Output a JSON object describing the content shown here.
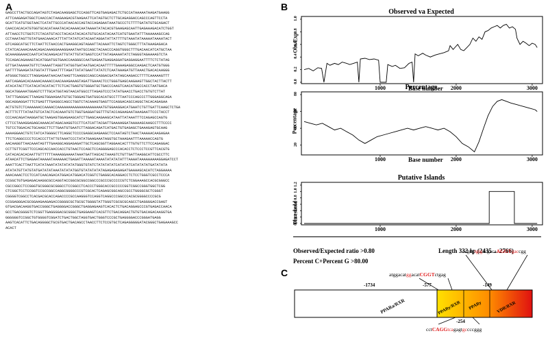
{
  "panels": {
    "a": "A",
    "b": "B",
    "c": "C"
  },
  "sequence_lines": [
    "GAGCCTTACTGCCAGATAGTCTAGACAAGGAGCTCCAGGTTCAGTGAGAGACTCTGCCATAAAAATAAGATGAAGG",
    "ATTCAAGAGATGGCTCAACCACTAAGAAGACGTAAGAATTCATAGTGCTCTTGCAGAGGACCAGCCCAGTTCCTA",
    "GCATTCATGTGGTAACTCATATTGCCCATAACACCAGTACCAGAGAATAAATGCCCTCTTTTGATATGTGCAGACT",
    "CAACCACACATGTGGTGCACATAAATACACAAAACAATAAAATATACACGTGAAGAGCAATTGAGAAAGACATCTGGT",
    "ATTAACCTCTGGTCTCTACATGTACCTACACATACACATGTGCACATACAATCATGTGAATATTTAAAAAAGCCAG",
    "CCTAAATAGTTGTATGAACAAACATTTATTATATCATACAATAGGATATTATTTTGTAAATATAAAAATAAAATACT",
    "GTCAGGCATGCTTCTAATTCTAACCACTGAAGGCAGTAGAATTACAAATTCTAGTCTGGGCTTTATAAAGAGACA",
    "CTATCACAAACAAACAGACAAAGGAAAGGAAATAATGCCAGCTACAACCCAGGTGGGCTTTGACAACATCATGCTAA",
    "GCAAAGGAAACCAATCATACAAGACATTGTATTGTATGAGTCCATTATAGAAAATATCTAGGGTAGAAAAGTCTA",
    "TCCAGACAGAAAGTACATGGATGGTGAACCAAGGGCCAATGAGAATGAGGAGGATGAGGAGGAATTTTCTCTATAG",
    "GTTGATAAAAATGTTCTAAAATTAGGTTATGGTGATAATGACACAATTTTTGAAAGAGGCCAAGACTCAATGTGGG",
    "GATTTTGAAGATATGGTATTTGAATTTTAGATTATATGAATTATATCTCAATAAAGATGTTAAACTGACACAAGGG",
    "ATGGGCTGGCCTTAGGAGAATAACAATAAGTTCAAGGCCAGCCAGGACGATATAGCAAGACCTTTTCAAAAAGTTT",
    "AATCAGAGACACAAAACAAAACCAACAAAGAAAGTAGATTGAAACTCCTGGGTGAGCAAGAAGTTGGCTACTTACTT",
    "ATACATACTTCATACATACATACTTCTCACTGAGTGTGGGATGCTGACCCAAGTCAACATGGCCACCTAATGACA",
    "GGCATGGAAATGGAGTCTTTGCATGGTAGTAACATGGCCTTAGAGTCCCTATATGAACCTGACCTGTGTCTTAT",
    "TATTTGAGGACTTAAGAGTGGAAGAATGTGCTGGGAGTGATGGCACATGCCTTTAATCCCAGCCCTTGGGAGGCAGA",
    "GGCAGGAGGATTTCTGAGTTTGAGGCCAGCCTGGTCTACAAAGTGAGTTCCAGGACAGCCAGGCTACACAGAGAA",
    "ACTGTGTCTCAAAAAACCAAAACCAAAAAAAAAAAAAAAAAAAAATGTGGAAGGACATGAATCTGTTGATTCAAGCTCTGA",
    "ACTTTCTTTATAATGTCATACTCACAAATGTCTGGTGAGGATGGTTTGTACCAGAAGAATAAAGAATTCCCTACCT",
    "CCCAACAGATAAGGATGCTAAGAGTGGAGAAGCATCTTGAGCAAGAAGCATAATTATAAATTTCCAGAGCCAGTG",
    "CTTCCTAAAGGAGAGCAAAACATAGACAAGGTCCTTCATCATTACGATTGAAAAGGATAAAAAGCAAGCCTTTCCCC",
    "TGTCCTGGACACTGCAAGCTTCTTGAATGTGAATCTTAGGACAGATCATGACTGTGAGAGCTGAAAGAGTGCAAG",
    "AAAAGGAACTGTCTATCATGGGGCTTCAGGCTCCCCGAGGCAAGAAGCTCCAATAGTCTAACTAAAAACAAGAGAA",
    "TTCTCAGGCCCCTCCACCCTTATTGTAAATCCCTATATGAAGAAATAGGTGCTAAAGAATTTAAAAACCAGTG",
    "AACAAGGTTAACAAATAGTTTGAAGGCAGGAGAGATTGCTCAGCGGTTAGGAACACTTTGTGTTCTTCCAGAGGAC",
    "CCTTGTTCGGTTCCCAGCACCAACCACCTGTAACTCCAGCTCCAGGGGAGCCCACACCTCTCCCTCCGTTCACGTG",
    "CATACACACACAATTGTTTTTTAAAAGGAAAATAAATGATTAGCACTAAAGTCTGTTGATTAAGGCATTCGCCTTC",
    "ATAACATTCTGAGAATAAAAATAAAAAACTGAGATTAAAAATAAAATATATATATTTAAAATAAAAAAAAAGGAGATCCT",
    "AAATTCACTTAATTCATATAAATATATATATATGGGTGTATCTATATATATCATATATCATATATATGATATATA",
    "ATATATGTTATGTATGATATATAAATATATATGGTGTATATATATAGAGAGAGAGATGAAAAGCACATCTAGGAAAA",
    "AAACAAACTCCTCCATCAACAGACATGGACATGGACATCGGTCTGAGGCACAGGACCTCTCCTGGGTCGCCTCCCA",
    "CCGGCTGTGAGAGACAAGGCGCCAGGTACCGGCGCGGCCGGCCCGCCCGCCCCCGTCTCGGAAAGCCACGCGGGCC",
    "CGCCGGCCTCCGGGTGCGGGCGCGGGCCTCCGGCCTCACCCTGGGCACCGCCCCCGGTCGGCCGGGTGGCTCGG",
    "CTCGGCTCCTCCGGTCCGCCGGCCAGGCGGGGCCCGTCGCACTCAGAGCGGCAGCCGCCTGGGGCGCTCGGGT",
    "CGGGGTCGGCCTCACGACGCACCAGACCCCGCCAAGGGTCCAGGTCAGGCCCGGCCCACGCGGGGCCCCGCG",
    "CCGGAGGGACGCGGAAGAAGAGACCGGGGCGCTGCGCTGGGGTATTGGGTCGCGCGCAGCCTGAGGGGACCGAGT",
    "GTGACGACAAGGTGACCGGGCTGAGGGGACCGGGCTGAGGAGAAGTCACACTCTGACAGGAGCCCGTGAGACCAACA",
    "GCCTGACGGGGTCTCGGTTGAGGGGACGCGGGCTGAGGAAGTCACGTTCTGACAGGACTGTGTGACAGACAAGGTGA",
    "GGGGGGTCCGGCTGTGGGGTCGGATCTGACTGGCTAGGTGACTGGGTCCCGCTGAGGGGACCCGGGATGAGG",
    "AAGTCACATTCTGACAGGGGCTGCGTGACTGACAGCCTAACCTTCTCCGTGCTCAGAGGGGGATACGGGCTGAGAAAGCC",
    "ACACT"
  ],
  "chart_top": {
    "title": "Observed va Expected",
    "ylabel": "Obs/Exp",
    "xlabel": "Base number",
    "yticks": [
      "0.0",
      "0.2",
      "0.4",
      "0.6",
      "0.8",
      "1.0"
    ],
    "xticks": [
      "1000",
      "2000",
      "3000"
    ]
  },
  "chart_mid": {
    "title": "Percentage",
    "ylabel": "Percentage",
    "xlabel": "Base number",
    "yticks": [
      "20",
      "40",
      "60",
      "80"
    ],
    "xticks": [
      "1000",
      "2000",
      "3000"
    ]
  },
  "chart_bot": {
    "title": "Putative Islands",
    "ylabel": "Threshold",
    "yticks": [
      "0.0",
      "0.2",
      "0.4",
      "0.6",
      "0.8",
      "1.0",
      "1.2"
    ],
    "xticks": [
      "1000",
      "2000",
      "3000"
    ]
  },
  "chart_data": [
    {
      "type": "line",
      "title": "Observed va Expected",
      "xlabel": "Base number",
      "ylabel": "Obs/Exp",
      "xlim": [
        0,
        3100
      ],
      "ylim": [
        0,
        1.0
      ],
      "x": [
        0,
        60,
        120,
        180,
        230,
        260,
        300,
        340,
        400,
        450,
        500,
        560,
        600,
        650,
        700,
        720,
        740,
        800,
        860,
        920,
        980,
        1000,
        1040,
        1080,
        1100,
        1160,
        1200,
        1260,
        1320,
        1380,
        1420,
        1440,
        1460,
        1500,
        1560,
        1600,
        1660,
        1720,
        1780,
        1840,
        1900,
        1920,
        1960,
        1990,
        2020,
        2060,
        2100,
        2140,
        2180,
        2220,
        2260,
        2300,
        2340,
        2380,
        2420,
        2460,
        2500,
        2540,
        2580,
        2620,
        2660,
        2700,
        2740,
        2780,
        2800,
        2840,
        2880,
        2920,
        2960,
        3000,
        3040,
        3066
      ],
      "y": [
        0.2,
        0.22,
        0.18,
        0.23,
        0.22,
        0,
        0.3,
        0.27,
        0.3,
        0.28,
        0.32,
        0.3,
        0.28,
        0.3,
        0.32,
        0,
        0.37,
        0.38,
        0.36,
        0.37,
        0.35,
        0,
        0,
        0,
        0.28,
        0.25,
        0.27,
        0.22,
        0.23,
        0.3,
        0.32,
        0,
        0.45,
        0.42,
        0.46,
        0.43,
        0.4,
        0.43,
        0.45,
        0.47,
        0.5,
        0.58,
        0.52,
        0.56,
        0.6,
        0.52,
        0.5,
        0.55,
        0.6,
        0.7,
        0.65,
        0.72,
        0.68,
        0.8,
        0.82,
        0.86,
        0.88,
        0.9,
        0.86,
        0.9,
        0.92,
        0.86,
        0.88,
        0.84,
        0.7,
        0.6,
        0.65,
        0.62,
        0.58,
        0.62,
        0.6,
        0.55
      ]
    },
    {
      "type": "line",
      "title": "Percentage",
      "xlabel": "Base number",
      "ylabel": "Percentage",
      "xlim": [
        0,
        3100
      ],
      "ylim": [
        10,
        80
      ],
      "x": [
        0,
        80,
        160,
        240,
        320,
        400,
        480,
        560,
        640,
        720,
        800,
        880,
        960,
        1040,
        1120,
        1200,
        1280,
        1360,
        1440,
        1520,
        1600,
        1680,
        1760,
        1840,
        1920,
        2000,
        2080,
        2160,
        2240,
        2300,
        2360,
        2420,
        2480,
        2540,
        2600,
        2660,
        2720,
        2800,
        2880,
        2960,
        3040,
        3066
      ],
      "y": [
        48,
        46,
        44,
        46,
        42,
        38,
        40,
        36,
        32,
        26,
        22,
        26,
        30,
        32,
        34,
        36,
        38,
        40,
        38,
        40,
        42,
        40,
        38,
        40,
        36,
        30,
        22,
        18,
        12,
        24,
        40,
        55,
        66,
        72,
        74,
        72,
        70,
        68,
        66,
        64,
        62,
        60
      ]
    },
    {
      "type": "line",
      "title": "Putative Islands",
      "ylabel": "Threshold",
      "xlim": [
        0,
        3100
      ],
      "ylim": [
        0,
        1.2
      ],
      "x": [
        0,
        2435,
        2435,
        2766,
        2766,
        3066
      ],
      "y": [
        0,
        0,
        1,
        1,
        0,
        0
      ]
    }
  ],
  "summary": {
    "ratio": "Observed/Expected ratio >0.80",
    "length_prefix": "Length 332 ",
    "length_bp": "bp",
    "length_range": " (2435 ... 2766)",
    "percent": "Percent C+Percent G >80.00"
  },
  "diagram": {
    "positions": {
      "p1734": "-1734",
      "p577": "-577",
      "p149": "-149",
      "p254": "-254"
    },
    "labels": {
      "ppara": "PPARa/RXR",
      "ppary_rxr": "PPARy/RXR",
      "ppary": "PPARy",
      "vdr": "VDR/RXR"
    },
    "seq1": {
      "a": "atggacat",
      "b": "gg",
      "c": "acat",
      "d": "CGGT",
      "e": "ctgag"
    },
    "seq2": {
      "a": "ccgag",
      "b": "tgtg",
      "c": "acgaca",
      "d": "AGGT",
      "e": "gac",
      "f": "cgg"
    },
    "seq3": {
      "a": "cct",
      "b": "CAGG",
      "c": "tca",
      "d": "gagt",
      "e": "gc",
      "f": "cc",
      "g": "cggg"
    },
    "colors": {
      "grad_start": "#ffe000",
      "grad_mid": "#ff8c00",
      "grad_end": "#e01010",
      "accent": "#e02020"
    }
  }
}
